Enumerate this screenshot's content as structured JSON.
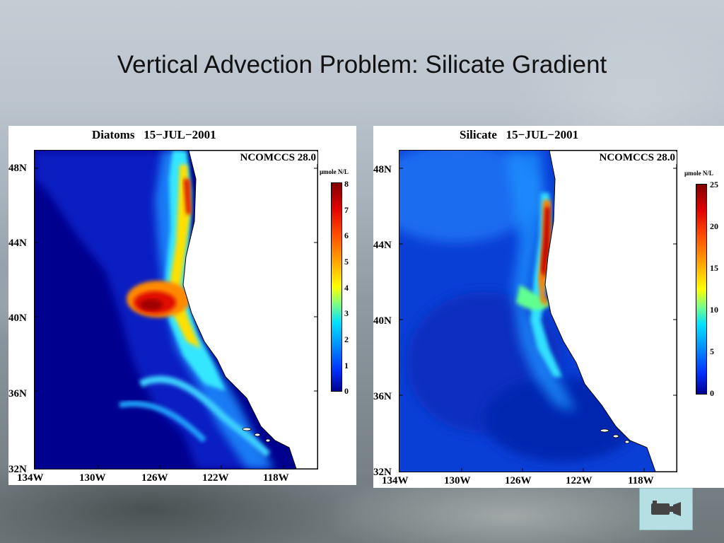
{
  "slide": {
    "title": "Vertical Advection Problem: Silicate Gradient"
  },
  "panels": [
    {
      "title": "Diatoms   15−JUL−2001",
      "model_label": "NCOMCCS 28.0",
      "unit": "µmole N/L",
      "colorbar_ticks": [
        "8",
        "7",
        "6",
        "5",
        "4",
        "3",
        "2",
        "1",
        "0"
      ],
      "lat_labels": [
        "48N",
        "44N",
        "40N",
        "36N",
        "32N"
      ],
      "lon_labels": [
        "134W",
        "130W",
        "126W",
        "122W",
        "118W"
      ]
    },
    {
      "title": "Silicate   15−JUL−2001",
      "model_label": "NCOMCCS 28.0",
      "unit": "µmole N/L",
      "colorbar_ticks": [
        "25",
        "20",
        "15",
        "10",
        "5",
        "0"
      ],
      "lat_labels": [
        "48N",
        "44N",
        "40N",
        "36N",
        "32N"
      ],
      "lon_labels": [
        "134W",
        "130W",
        "126W",
        "122W",
        "118W"
      ]
    }
  ],
  "colors": {
    "ocean_low": "#00008f",
    "ocean_mid": "#0a3fd6",
    "high": "#b40000",
    "land": "#ffffff"
  },
  "icons": {
    "movie_button": "video-camera-icon"
  }
}
